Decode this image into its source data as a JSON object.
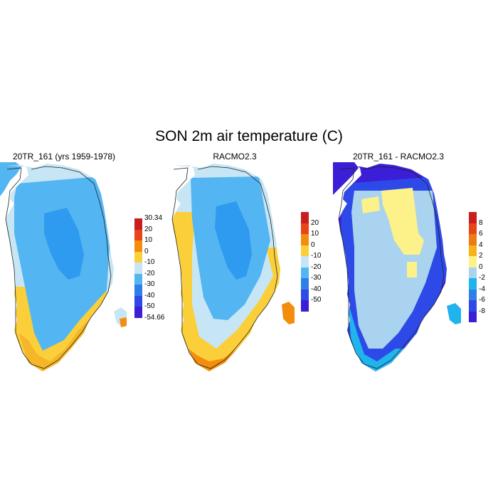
{
  "title": "SON 2m air temperature (C)",
  "panels": [
    {
      "id": "model",
      "title": "20TR_161 (yrs 1959-1978)",
      "colorbar": {
        "colors": [
          "#3a1fd6",
          "#2d4ae8",
          "#2e7fe8",
          "#53b6f2",
          "#c7e6f5",
          "#fbcf3a",
          "#f38d0d",
          "#e8451a",
          "#c81e1e"
        ],
        "labels": [
          "30.34",
          "20",
          "10",
          "0",
          "-10",
          "-20",
          "-30",
          "-40",
          "-50",
          "-54.66"
        ]
      }
    },
    {
      "id": "racmo",
      "title": "RACMO2.3",
      "colorbar": {
        "colors": [
          "#3a1fd6",
          "#2d4ae8",
          "#2e7fe8",
          "#53b6f2",
          "#c7e6f5",
          "#fbcf3a",
          "#f38d0d",
          "#e8451a",
          "#c81e1e"
        ],
        "labels": [
          "20",
          "10",
          "0",
          "-10",
          "-20",
          "-30",
          "-40",
          "-50"
        ]
      }
    },
    {
      "id": "diff",
      "title": "20TR_161 - RACMO2.3",
      "colorbar": {
        "colors": [
          "#3a1fd6",
          "#2d4ae8",
          "#2e7fe8",
          "#1fb4ee",
          "#a9d3ee",
          "#fdf28a",
          "#f7b418",
          "#ee7a12",
          "#e8451a",
          "#c81e1e"
        ],
        "labels": [
          "8",
          "6",
          "4",
          "2",
          "0",
          "-2",
          "-4",
          "-6",
          "-8"
        ]
      }
    }
  ]
}
